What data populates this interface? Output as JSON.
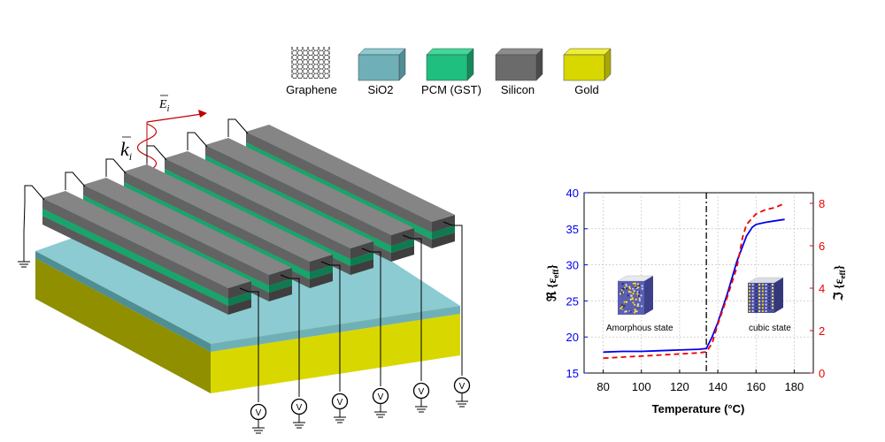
{
  "legend": {
    "items": [
      {
        "key": "graphene",
        "label": "Graphene",
        "color": "#ffffff"
      },
      {
        "key": "sio2",
        "label": "SiO2",
        "color": "#6fb0b8"
      },
      {
        "key": "pcm",
        "label": "PCM (GST)",
        "color": "#1fbf80"
      },
      {
        "key": "silicon",
        "label": "Silicon",
        "color": "#6b6b6b"
      },
      {
        "key": "gold",
        "label": "Gold",
        "color": "#d8d800"
      }
    ]
  },
  "wave": {
    "e_symbol": "E",
    "e_sub": "i",
    "k_symbol": "k",
    "k_sub": "i",
    "color": "#c00000"
  },
  "device": {
    "voltage_label": "V",
    "num_strips": 6
  },
  "chart_data": {
    "type": "line",
    "xlabel": "Temperature (°C)",
    "ylabel_left_sym": "ℜ",
    "ylabel_left_text": "{ε",
    "ylabel_left_sub": "eff",
    "ylabel_left_close": "}",
    "ylabel_right_sym": "ℑ",
    "ylabel_right_text": "{ε",
    "ylabel_right_sub": "eff",
    "ylabel_right_close": "}",
    "xlim": [
      70,
      190
    ],
    "ylim_left": [
      15,
      40
    ],
    "ylim_right": [
      0,
      8.5
    ],
    "x_ticks": [
      80,
      100,
      120,
      140,
      160,
      180
    ],
    "y_left_ticks": [
      15,
      20,
      25,
      30,
      35,
      40
    ],
    "y_right_ticks": [
      0,
      2,
      4,
      6,
      8
    ],
    "grid": true,
    "transition_x": 134,
    "annotations": {
      "amorphous": "Amorphous state",
      "cubic": "cubic state"
    },
    "series": [
      {
        "axis": "left",
        "color": "#0000ee",
        "style": "solid",
        "x": [
          80,
          90,
          100,
          110,
          120,
          130,
          134,
          137,
          140,
          145,
          150,
          155,
          158,
          160,
          165,
          170,
          175
        ],
        "values": [
          17.9,
          18.0,
          18.0,
          18.1,
          18.2,
          18.3,
          18.4,
          20.0,
          22.0,
          26.0,
          30.5,
          34.0,
          35.2,
          35.6,
          35.9,
          36.1,
          36.3
        ]
      },
      {
        "axis": "right",
        "color": "#ee0000",
        "style": "dashed",
        "x": [
          80,
          90,
          100,
          110,
          120,
          130,
          134,
          137,
          140,
          145,
          150,
          153,
          155,
          158,
          160,
          165,
          170,
          175
        ],
        "values": [
          0.7,
          0.75,
          0.8,
          0.85,
          0.9,
          0.95,
          1.0,
          1.4,
          2.3,
          3.6,
          5.0,
          6.4,
          7.0,
          7.3,
          7.5,
          7.7,
          7.8,
          8.0
        ]
      }
    ]
  }
}
